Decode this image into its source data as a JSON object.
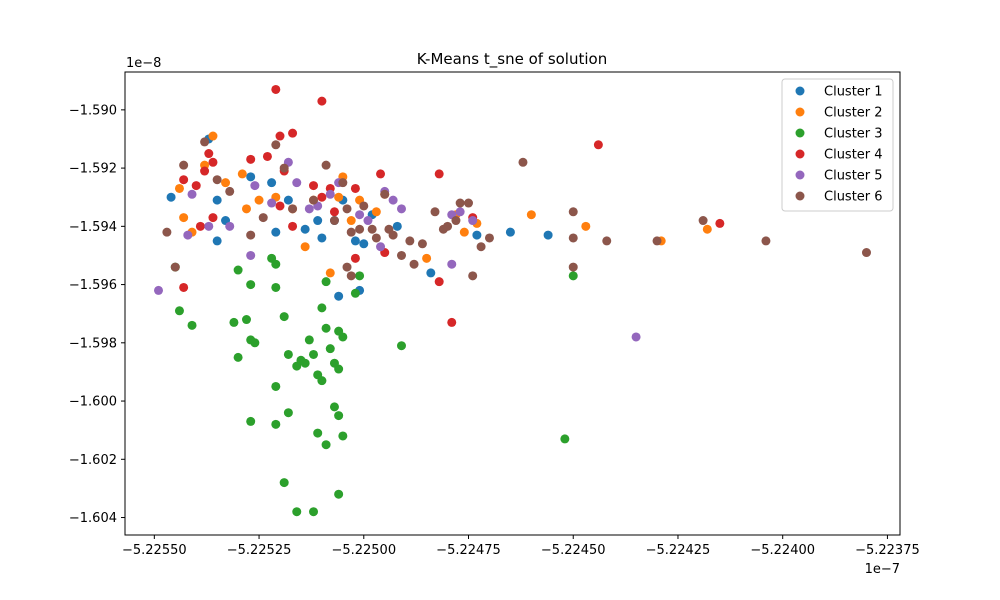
{
  "chart_data": {
    "type": "scatter",
    "title": "K-Means t_sne of solution",
    "xlabel": "",
    "ylabel": "",
    "x_offset_label": "1e−7",
    "y_offset_label": "1e−8",
    "xlim": [
      -5.22557,
      -5.22372
    ],
    "ylim": [
      -1.6046,
      -1.5887
    ],
    "x_ticks": [
      -5.2255,
      -5.22525,
      -5.225,
      -5.22475,
      -5.2245,
      -5.22425,
      -5.224,
      -5.22375
    ],
    "x_tick_labels": [
      "−5.22550",
      "−5.22525",
      "−5.22500",
      "−5.22475",
      "−5.22450",
      "−5.22425",
      "−5.22400",
      "−5.22375"
    ],
    "y_ticks": [
      -1.604,
      -1.602,
      -1.6,
      -1.598,
      -1.596,
      -1.594,
      -1.592,
      -1.59
    ],
    "y_tick_labels": [
      "−1.604",
      "−1.602",
      "−1.600",
      "−1.598",
      "−1.596",
      "−1.594",
      "−1.592",
      "−1.590"
    ],
    "grid": false,
    "legend_position": "top-right",
    "series": [
      {
        "name": "Cluster 1",
        "color": "#1f77b4",
        "points": [
          [
            -5.22546,
            -1.593
          ],
          [
            -5.22537,
            -1.591
          ],
          [
            -5.22535,
            -1.5931
          ],
          [
            -5.22535,
            -1.5945
          ],
          [
            -5.22533,
            -1.5938
          ],
          [
            -5.22527,
            -1.5923
          ],
          [
            -5.22522,
            -1.5925
          ],
          [
            -5.22521,
            -1.5942
          ],
          [
            -5.22518,
            -1.5931
          ],
          [
            -5.22514,
            -1.5941
          ],
          [
            -5.2251,
            -1.5944
          ],
          [
            -5.22511,
            -1.5938
          ],
          [
            -5.22507,
            -1.5938
          ],
          [
            -5.22505,
            -1.5931
          ],
          [
            -5.22502,
            -1.5945
          ],
          [
            -5.225,
            -1.5946
          ],
          [
            -5.22498,
            -1.5936
          ],
          [
            -5.22506,
            -1.5964
          ],
          [
            -5.22501,
            -1.5962
          ],
          [
            -5.22492,
            -1.594
          ],
          [
            -5.22484,
            -1.5956
          ],
          [
            -5.22473,
            -1.5943
          ],
          [
            -5.22465,
            -1.5942
          ],
          [
            -5.22456,
            -1.5943
          ]
        ]
      },
      {
        "name": "Cluster 2",
        "color": "#ff7f0e",
        "points": [
          [
            -5.22544,
            -1.5927
          ],
          [
            -5.22543,
            -1.5937
          ],
          [
            -5.22541,
            -1.5942
          ],
          [
            -5.22538,
            -1.5919
          ],
          [
            -5.22536,
            -1.5909
          ],
          [
            -5.22533,
            -1.5925
          ],
          [
            -5.22529,
            -1.5922
          ],
          [
            -5.22528,
            -1.5934
          ],
          [
            -5.22525,
            -1.5931
          ],
          [
            -5.22521,
            -1.593
          ],
          [
            -5.22517,
            -1.5934
          ],
          [
            -5.22514,
            -1.5947
          ],
          [
            -5.22512,
            -1.5931
          ],
          [
            -5.22508,
            -1.5956
          ],
          [
            -5.22506,
            -1.593
          ],
          [
            -5.22505,
            -1.5923
          ],
          [
            -5.22503,
            -1.5938
          ],
          [
            -5.22501,
            -1.5931
          ],
          [
            -5.22497,
            -1.5935
          ],
          [
            -5.22495,
            -1.5929
          ],
          [
            -5.22478,
            -1.5936
          ],
          [
            -5.22476,
            -1.5942
          ],
          [
            -5.22473,
            -1.5939
          ],
          [
            -5.2246,
            -1.5936
          ],
          [
            -5.22447,
            -1.594
          ],
          [
            -5.22429,
            -1.5945
          ],
          [
            -5.22418,
            -1.5941
          ],
          [
            -5.22485,
            -1.5951
          ]
        ]
      },
      {
        "name": "Cluster 3",
        "color": "#2ca02c",
        "points": [
          [
            -5.22545,
            -1.5954
          ],
          [
            -5.22544,
            -1.5969
          ],
          [
            -5.22541,
            -1.5974
          ],
          [
            -5.22531,
            -1.5973
          ],
          [
            -5.2253,
            -1.5955
          ],
          [
            -5.22528,
            -1.5972
          ],
          [
            -5.22527,
            -1.596
          ],
          [
            -5.22527,
            -1.5979
          ],
          [
            -5.22526,
            -1.598
          ],
          [
            -5.2253,
            -1.5985
          ],
          [
            -5.22522,
            -1.5951
          ],
          [
            -5.22521,
            -1.5953
          ],
          [
            -5.22521,
            -1.5961
          ],
          [
            -5.22519,
            -1.5971
          ],
          [
            -5.22518,
            -1.5984
          ],
          [
            -5.22516,
            -1.5988
          ],
          [
            -5.22515,
            -1.5986
          ],
          [
            -5.22514,
            -1.5987
          ],
          [
            -5.22513,
            -1.5979
          ],
          [
            -5.22512,
            -1.5984
          ],
          [
            -5.22511,
            -1.5991
          ],
          [
            -5.2251,
            -1.5993
          ],
          [
            -5.2251,
            -1.5968
          ],
          [
            -5.22509,
            -1.5975
          ],
          [
            -5.22508,
            -1.5982
          ],
          [
            -5.22507,
            -1.5987
          ],
          [
            -5.22506,
            -1.5976
          ],
          [
            -5.22506,
            -1.5989
          ],
          [
            -5.22509,
            -1.5959
          ],
          [
            -5.22505,
            -1.5978
          ],
          [
            -5.22502,
            -1.5963
          ],
          [
            -5.22501,
            -1.5957
          ],
          [
            -5.22491,
            -1.5981
          ],
          [
            -5.22521,
            -1.5995
          ],
          [
            -5.22527,
            -1.6007
          ],
          [
            -5.22518,
            -1.6004
          ],
          [
            -5.22511,
            -1.6011
          ],
          [
            -5.22507,
            -1.6002
          ],
          [
            -5.22506,
            -1.6005
          ],
          [
            -5.22505,
            -1.6012
          ],
          [
            -5.22509,
            -1.6015
          ],
          [
            -5.22521,
            -1.6008
          ],
          [
            -5.22519,
            -1.6028
          ],
          [
            -5.22516,
            -1.6038
          ],
          [
            -5.22512,
            -1.6038
          ],
          [
            -5.22506,
            -1.6032
          ],
          [
            -5.22452,
            -1.6013
          ],
          [
            -5.2245,
            -1.5957
          ]
        ]
      },
      {
        "name": "Cluster 4",
        "color": "#d62728",
        "points": [
          [
            -5.22521,
            -1.5893
          ],
          [
            -5.2251,
            -1.5897
          ],
          [
            -5.22517,
            -1.5908
          ],
          [
            -5.2252,
            -1.5909
          ],
          [
            -5.22537,
            -1.5915
          ],
          [
            -5.22536,
            -1.5918
          ],
          [
            -5.2254,
            -1.5926
          ],
          [
            -5.22538,
            -1.5921
          ],
          [
            -5.22543,
            -1.5924
          ],
          [
            -5.22527,
            -1.5917
          ],
          [
            -5.22523,
            -1.5916
          ],
          [
            -5.22519,
            -1.5921
          ],
          [
            -5.22512,
            -1.5926
          ],
          [
            -5.2251,
            -1.593
          ],
          [
            -5.22508,
            -1.5927
          ],
          [
            -5.2252,
            -1.5933
          ],
          [
            -5.22517,
            -1.594
          ],
          [
            -5.22507,
            -1.5935
          ],
          [
            -5.22502,
            -1.5951
          ],
          [
            -5.22502,
            -1.5927
          ],
          [
            -5.22496,
            -1.5922
          ],
          [
            -5.22495,
            -1.5949
          ],
          [
            -5.22482,
            -1.5922
          ],
          [
            -5.22474,
            -1.5937
          ],
          [
            -5.22539,
            -1.594
          ],
          [
            -5.22536,
            -1.5937
          ],
          [
            -5.22543,
            -1.5961
          ],
          [
            -5.22482,
            -1.5959
          ],
          [
            -5.22479,
            -1.5973
          ],
          [
            -5.22444,
            -1.5912
          ],
          [
            -5.22415,
            -1.5939
          ]
        ]
      },
      {
        "name": "Cluster 5",
        "color": "#9467bd",
        "points": [
          [
            -5.22549,
            -1.5962
          ],
          [
            -5.22542,
            -1.5943
          ],
          [
            -5.22541,
            -1.5929
          ],
          [
            -5.22537,
            -1.594
          ],
          [
            -5.22532,
            -1.594
          ],
          [
            -5.22526,
            -1.5926
          ],
          [
            -5.22522,
            -1.5932
          ],
          [
            -5.22518,
            -1.5918
          ],
          [
            -5.22516,
            -1.5925
          ],
          [
            -5.22513,
            -1.5934
          ],
          [
            -5.22511,
            -1.5933
          ],
          [
            -5.22508,
            -1.5929
          ],
          [
            -5.22506,
            -1.5925
          ],
          [
            -5.22501,
            -1.5936
          ],
          [
            -5.22499,
            -1.5938
          ],
          [
            -5.22496,
            -1.5947
          ],
          [
            -5.22495,
            -1.5928
          ],
          [
            -5.22493,
            -1.5931
          ],
          [
            -5.22491,
            -1.5934
          ],
          [
            -5.22479,
            -1.5936
          ],
          [
            -5.22477,
            -1.5935
          ],
          [
            -5.22474,
            -1.5938
          ],
          [
            -5.22479,
            -1.5953
          ],
          [
            -5.22527,
            -1.595
          ],
          [
            -5.22435,
            -1.5978
          ]
        ]
      },
      {
        "name": "Cluster 6",
        "color": "#8c564b",
        "points": [
          [
            -5.22547,
            -1.5942
          ],
          [
            -5.22545,
            -1.5954
          ],
          [
            -5.22543,
            -1.5919
          ],
          [
            -5.22538,
            -1.5911
          ],
          [
            -5.22535,
            -1.5924
          ],
          [
            -5.22532,
            -1.5928
          ],
          [
            -5.22527,
            -1.5943
          ],
          [
            -5.22524,
            -1.5937
          ],
          [
            -5.22521,
            -1.5912
          ],
          [
            -5.22519,
            -1.592
          ],
          [
            -5.22517,
            -1.5934
          ],
          [
            -5.22512,
            -1.5931
          ],
          [
            -5.22509,
            -1.5919
          ],
          [
            -5.22507,
            -1.5938
          ],
          [
            -5.22505,
            -1.5925
          ],
          [
            -5.22504,
            -1.5934
          ],
          [
            -5.22503,
            -1.5942
          ],
          [
            -5.22501,
            -1.5941
          ],
          [
            -5.225,
            -1.5933
          ],
          [
            -5.22498,
            -1.5941
          ],
          [
            -5.22497,
            -1.5944
          ],
          [
            -5.22495,
            -1.5929
          ],
          [
            -5.22494,
            -1.5941
          ],
          [
            -5.22493,
            -1.5943
          ],
          [
            -5.22491,
            -1.595
          ],
          [
            -5.22489,
            -1.5945
          ],
          [
            -5.22488,
            -1.5953
          ],
          [
            -5.22486,
            -1.5946
          ],
          [
            -5.22483,
            -1.5935
          ],
          [
            -5.22481,
            -1.5941
          ],
          [
            -5.2248,
            -1.594
          ],
          [
            -5.22478,
            -1.5938
          ],
          [
            -5.22477,
            -1.5932
          ],
          [
            -5.22475,
            -1.5932
          ],
          [
            -5.22474,
            -1.5957
          ],
          [
            -5.22472,
            -1.5947
          ],
          [
            -5.2247,
            -1.5944
          ],
          [
            -5.22462,
            -1.5918
          ],
          [
            -5.2245,
            -1.5954
          ],
          [
            -5.2245,
            -1.5935
          ],
          [
            -5.2245,
            -1.5944
          ],
          [
            -5.22442,
            -1.5945
          ],
          [
            -5.2243,
            -1.5945
          ],
          [
            -5.22419,
            -1.5938
          ],
          [
            -5.22404,
            -1.5945
          ],
          [
            -5.22504,
            -1.5954
          ],
          [
            -5.22503,
            -1.5957
          ],
          [
            -5.2238,
            -1.5949
          ]
        ]
      }
    ]
  }
}
